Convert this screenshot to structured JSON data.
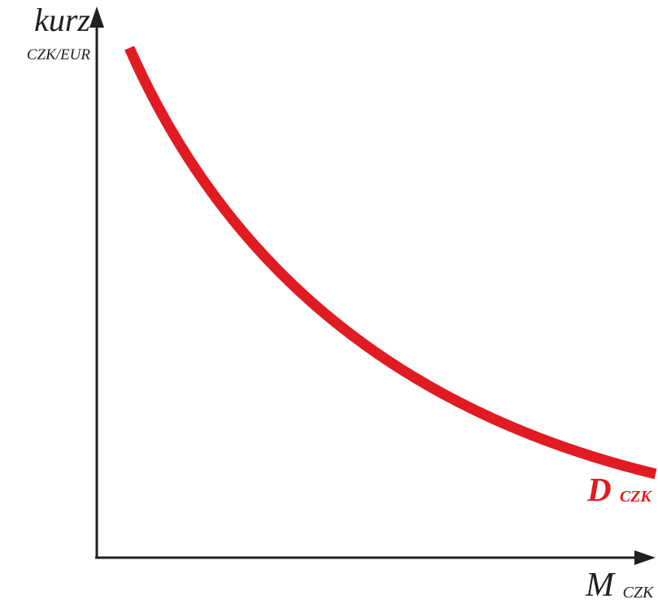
{
  "diagram": {
    "y_axis": {
      "label_main": "kurz",
      "label_sub": "CZK/EUR"
    },
    "x_axis": {
      "label_main": "M",
      "label_sub": "CZK"
    },
    "curve": {
      "label_main": "D",
      "label_sub": "CZK",
      "shape": "downward-sloping convex demand curve",
      "color": "#e11b22"
    },
    "colors": {
      "axes": "#231f20",
      "curve": "#e11b22"
    }
  }
}
